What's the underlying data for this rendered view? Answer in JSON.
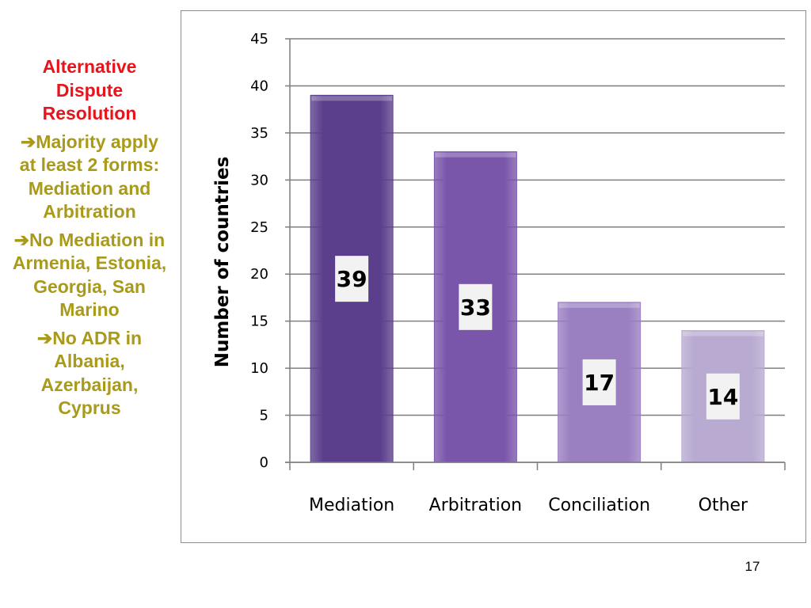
{
  "sidebar": {
    "title": "Alternative Dispute Resolution",
    "points": [
      "➔Majority apply at least 2 forms: Mediation and Arbitration",
      "➔No Mediation in Armenia, Estonia, Georgia, San Marino",
      "➔No ADR in Albania, Azerbaijan, Cyprus"
    ]
  },
  "colors": {
    "title": "#e8141c",
    "points": "#a99a1a",
    "bars": [
      "#5b3f8c",
      "#7a56ab",
      "#9a7fc1",
      "#b8aad0"
    ]
  },
  "page_number": "17",
  "chart_data": {
    "type": "bar",
    "categories": [
      "Mediation",
      "Arbitration",
      "Conciliation",
      "Other"
    ],
    "values": [
      39,
      33,
      17,
      14
    ],
    "data_labels": [
      "39",
      "33",
      "17",
      "14"
    ],
    "title": "",
    "xlabel": "",
    "ylabel": "Number of countries",
    "ylim": [
      0,
      45
    ],
    "yticks": [
      0,
      5,
      10,
      15,
      20,
      25,
      30,
      35,
      40,
      45
    ],
    "grid": true,
    "legend": "none"
  }
}
